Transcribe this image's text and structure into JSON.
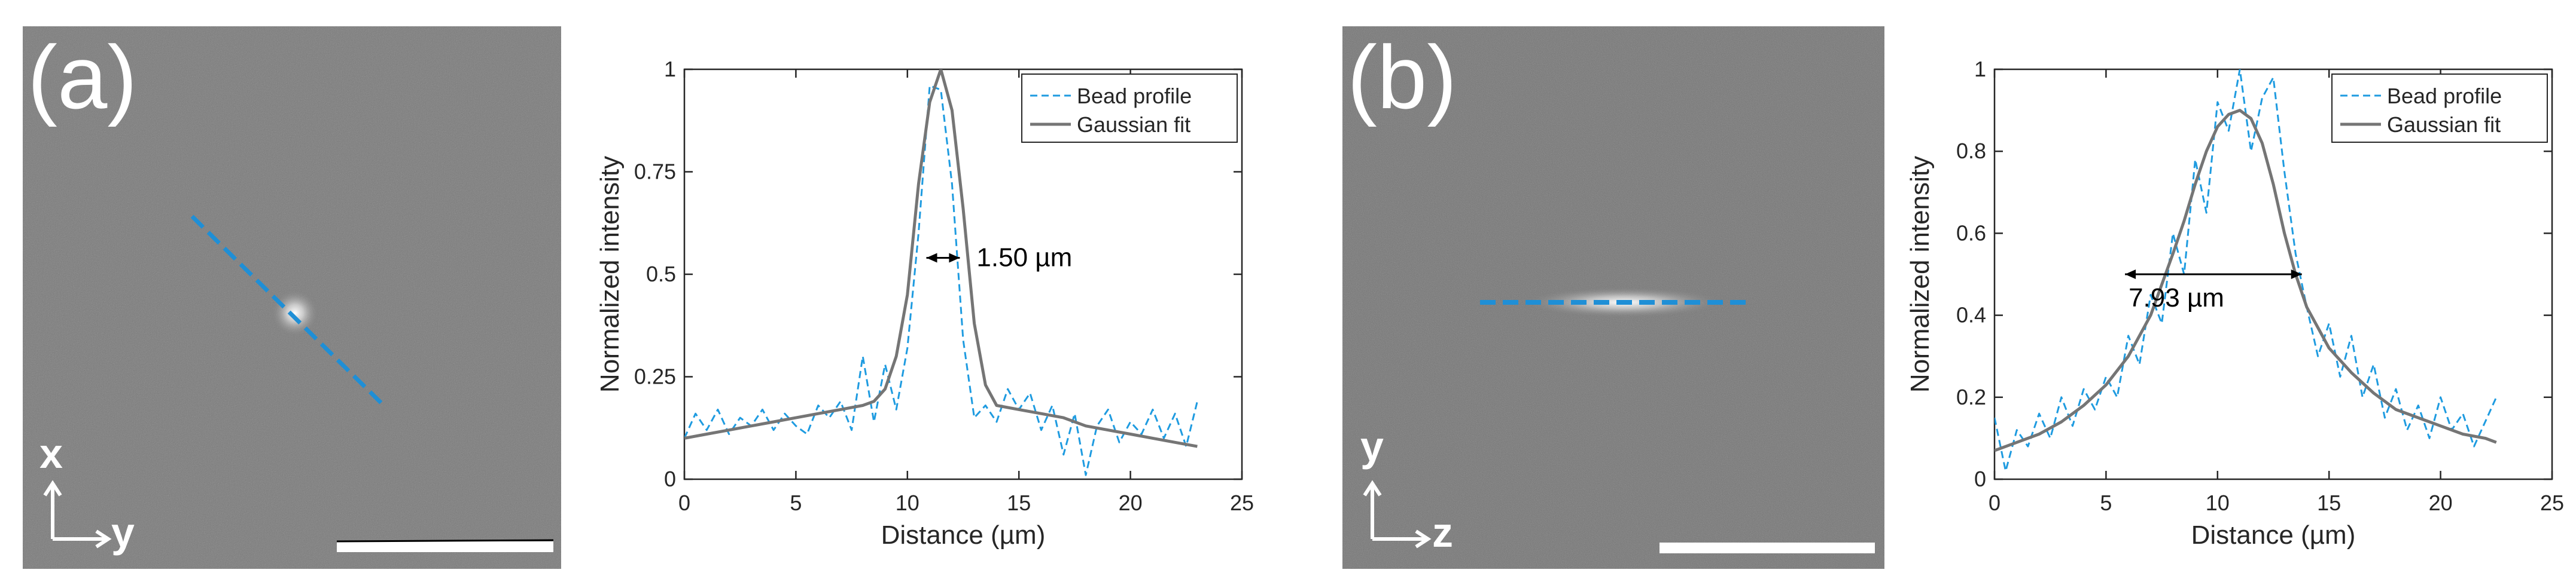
{
  "figure": {
    "panels": [
      {
        "label": "(a)",
        "micrograph": {
          "axis_vertical": "x",
          "axis_horizontal": "y",
          "line_color": "#1f8fd6",
          "scale_bar_color": "#ffffff"
        },
        "chart_index": 0
      },
      {
        "label": "(b)",
        "micrograph": {
          "axis_vertical": "y",
          "axis_horizontal": "z",
          "line_color": "#1f8fd6",
          "scale_bar_color": "#ffffff"
        },
        "chart_index": 1
      }
    ]
  },
  "chart_data": [
    {
      "type": "line",
      "title": "",
      "xlabel": "Distance (µm)",
      "ylabel": "Normalized intensity",
      "xlim": [
        0,
        25
      ],
      "ylim": [
        0,
        1
      ],
      "xticks": [
        0,
        5,
        10,
        15,
        20,
        25
      ],
      "xtick_labels": [
        "0",
        "5",
        "10",
        "15",
        "20",
        "25"
      ],
      "yticks": [
        0,
        0.25,
        0.5,
        0.75,
        1
      ],
      "ytick_labels": [
        "0",
        "0.25",
        "0.5",
        "0.75",
        "1"
      ],
      "legend_position": "top-right",
      "annotation": "1.50 µm",
      "fwhm_range": [
        10.85,
        12.35
      ],
      "fwhm_y": 0.54,
      "series": [
        {
          "name": "Bead profile",
          "style": "dashed",
          "color": "#1e9be0",
          "x": [
            0,
            0.5,
            1,
            1.5,
            2,
            2.5,
            3,
            3.5,
            4,
            4.5,
            5,
            5.5,
            6,
            6.5,
            7,
            7.5,
            8,
            8.5,
            9,
            9.5,
            10,
            10.5,
            11,
            11.5,
            12,
            12.5,
            13,
            13.5,
            14,
            14.5,
            15,
            15.5,
            16,
            16.5,
            17,
            17.5,
            18,
            18.5,
            19,
            19.5,
            20,
            20.5,
            21,
            21.5,
            22,
            22.5,
            23
          ],
          "values": [
            0.1,
            0.16,
            0.12,
            0.17,
            0.11,
            0.15,
            0.13,
            0.17,
            0.12,
            0.16,
            0.13,
            0.11,
            0.18,
            0.15,
            0.19,
            0.12,
            0.3,
            0.14,
            0.28,
            0.17,
            0.32,
            0.6,
            0.96,
            0.95,
            0.72,
            0.34,
            0.15,
            0.18,
            0.14,
            0.22,
            0.17,
            0.21,
            0.12,
            0.18,
            0.06,
            0.16,
            0.01,
            0.13,
            0.17,
            0.09,
            0.14,
            0.11,
            0.17,
            0.1,
            0.16,
            0.08,
            0.19
          ]
        },
        {
          "name": "Gaussian fit",
          "style": "solid",
          "color": "#757575",
          "x": [
            0,
            1,
            2,
            3,
            4,
            5,
            6,
            7,
            8,
            8.5,
            9,
            9.5,
            10,
            10.5,
            11,
            11.5,
            12,
            12.5,
            13,
            13.5,
            14,
            15,
            16,
            17,
            18,
            19,
            20,
            21,
            22,
            23
          ],
          "values": [
            0.1,
            0.11,
            0.12,
            0.13,
            0.14,
            0.15,
            0.16,
            0.17,
            0.18,
            0.19,
            0.22,
            0.3,
            0.45,
            0.72,
            0.92,
            1.0,
            0.9,
            0.66,
            0.38,
            0.23,
            0.18,
            0.17,
            0.16,
            0.15,
            0.13,
            0.12,
            0.11,
            0.1,
            0.09,
            0.08
          ]
        }
      ]
    },
    {
      "type": "line",
      "title": "",
      "xlabel": "Distance (µm)",
      "ylabel": "Normalized intensity",
      "xlim": [
        0,
        25
      ],
      "ylim": [
        0,
        1
      ],
      "xticks": [
        0,
        5,
        10,
        15,
        20,
        25
      ],
      "xtick_labels": [
        "0",
        "5",
        "10",
        "15",
        "20",
        "25"
      ],
      "yticks": [
        0,
        0.2,
        0.4,
        0.6,
        0.8,
        1
      ],
      "ytick_labels": [
        "0",
        "0.2",
        "0.4",
        "0.6",
        "0.8",
        "1"
      ],
      "legend_position": "top-right",
      "annotation": "7.93 µm",
      "fwhm_range": [
        5.85,
        13.78
      ],
      "fwhm_y": 0.5,
      "series": [
        {
          "name": "Bead profile",
          "style": "dashed",
          "color": "#1e9be0",
          "x": [
            0,
            0.5,
            1,
            1.5,
            2,
            2.5,
            3,
            3.5,
            4,
            4.5,
            5,
            5.5,
            6,
            6.5,
            7,
            7.5,
            8,
            8.5,
            9,
            9.5,
            10,
            10.5,
            11,
            11.5,
            12,
            12.5,
            13,
            13.5,
            14,
            14.5,
            15,
            15.5,
            16,
            16.5,
            17,
            17.5,
            18,
            18.5,
            19,
            19.5,
            20,
            20.5,
            21,
            21.5,
            22,
            22.5
          ],
          "values": [
            0.15,
            0.02,
            0.12,
            0.08,
            0.16,
            0.1,
            0.2,
            0.13,
            0.22,
            0.17,
            0.25,
            0.2,
            0.35,
            0.28,
            0.45,
            0.38,
            0.6,
            0.5,
            0.78,
            0.65,
            0.92,
            0.85,
            1.0,
            0.8,
            0.93,
            0.98,
            0.75,
            0.55,
            0.42,
            0.3,
            0.38,
            0.25,
            0.35,
            0.2,
            0.28,
            0.15,
            0.22,
            0.12,
            0.18,
            0.1,
            0.2,
            0.12,
            0.16,
            0.08,
            0.14,
            0.2
          ]
        },
        {
          "name": "Gaussian fit",
          "style": "solid",
          "color": "#757575",
          "x": [
            0,
            1,
            2,
            3,
            4,
            5,
            6,
            7,
            8,
            8.5,
            9,
            9.5,
            10,
            10.5,
            11,
            11.5,
            12,
            12.5,
            13,
            13.5,
            14,
            15,
            16,
            17,
            18,
            19,
            20,
            21,
            22,
            22.5
          ],
          "values": [
            0.07,
            0.09,
            0.11,
            0.14,
            0.18,
            0.23,
            0.3,
            0.4,
            0.55,
            0.63,
            0.72,
            0.8,
            0.86,
            0.89,
            0.9,
            0.88,
            0.82,
            0.72,
            0.6,
            0.5,
            0.42,
            0.32,
            0.26,
            0.21,
            0.17,
            0.15,
            0.13,
            0.11,
            0.1,
            0.09
          ]
        }
      ]
    }
  ]
}
